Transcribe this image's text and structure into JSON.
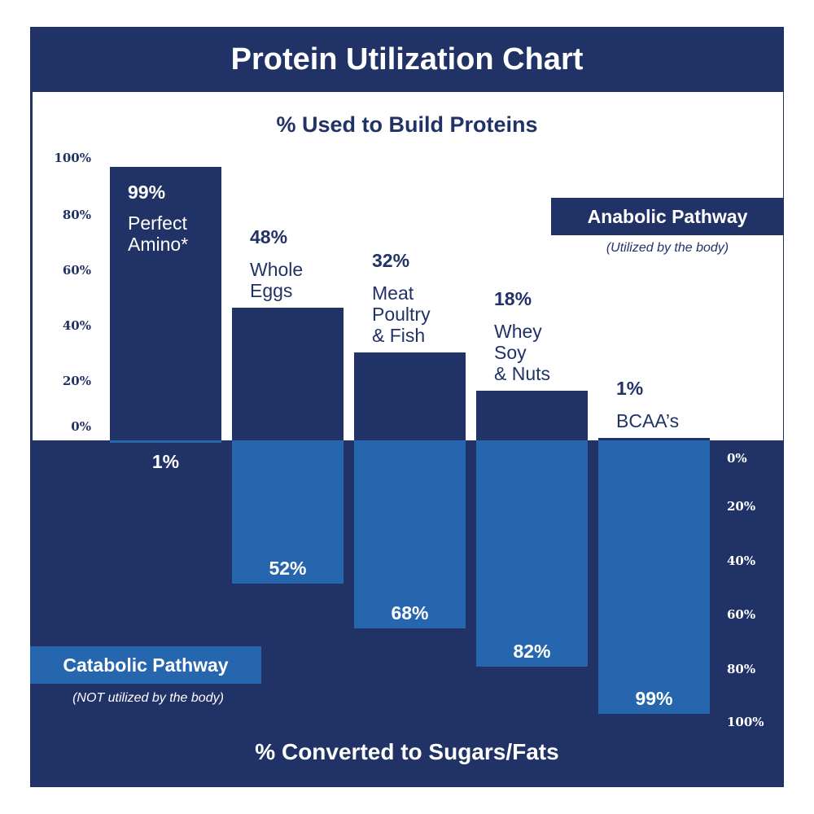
{
  "title": "Protein Utilization Chart",
  "colors": {
    "navy": "#213266",
    "blue": "#2566ae",
    "white": "#ffffff"
  },
  "chart_data": {
    "type": "bar",
    "title": "Protein Utilization Chart",
    "top_axis_title": "% Used to Build Proteins",
    "bottom_axis_title": "% Converted to Sugars/Fats",
    "top_ticks": [
      "100%",
      "80%",
      "60%",
      "40%",
      "20%",
      "0%"
    ],
    "bottom_ticks": [
      "0%",
      "20%",
      "40%",
      "60%",
      "80%",
      "100%"
    ],
    "ylim": [
      0,
      100
    ],
    "categories": [
      "Perfect\nAmino*",
      "Whole\nEggs",
      "Meat\nPoultry\n& Fish",
      "Whey\nSoy\n& Nuts",
      "BCAA’s"
    ],
    "series": [
      {
        "name": "Anabolic Pathway",
        "values": [
          99,
          48,
          32,
          18,
          1
        ],
        "labels": [
          "99%",
          "48%",
          "32%",
          "18%",
          "1%"
        ]
      },
      {
        "name": "Catabolic Pathway",
        "values": [
          1,
          52,
          68,
          82,
          99
        ],
        "labels": [
          "1%",
          "52%",
          "68%",
          "82%",
          "99%"
        ]
      }
    ]
  },
  "legend": {
    "anabolic": {
      "label": "Anabolic Pathway",
      "note": "(Utilized by the body)"
    },
    "catabolic": {
      "label": "Catabolic Pathway",
      "note": "(NOT utilized by the body)"
    }
  }
}
